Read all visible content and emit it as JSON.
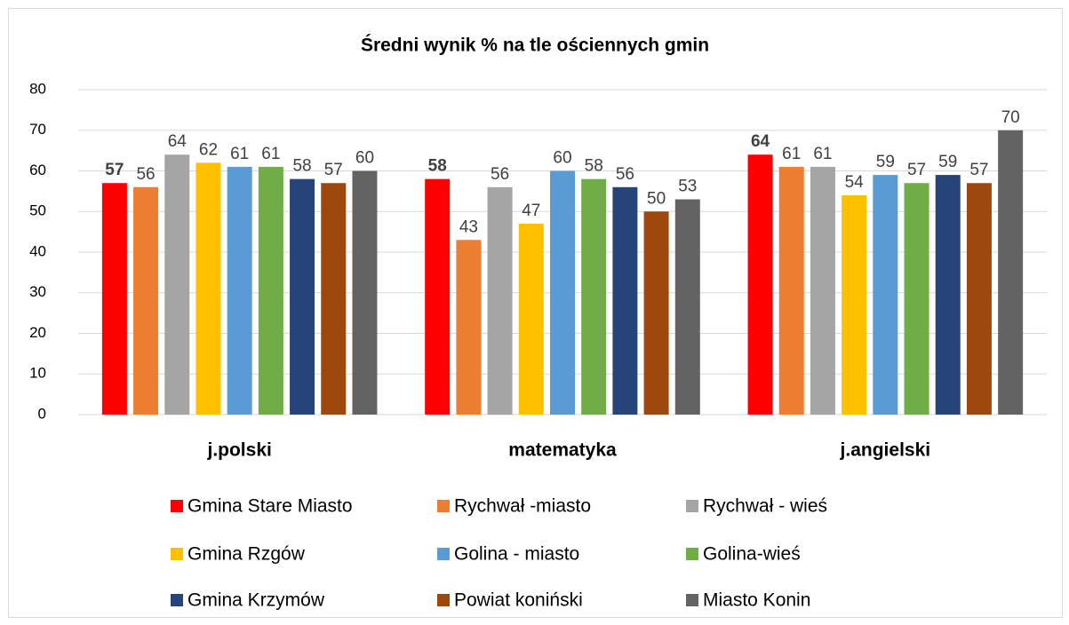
{
  "chart_data": {
    "type": "bar",
    "title": "Średni wynik % na tle ościennych gmin",
    "categories": [
      "j.polski",
      "matematyka",
      "j.angielski"
    ],
    "series": [
      {
        "name": "Gmina Stare Miasto",
        "color": "#ff0000",
        "values": [
          57,
          58,
          64
        ]
      },
      {
        "name": "Rychwał -miasto",
        "color": "#ed7d31",
        "values": [
          56,
          43,
          61
        ]
      },
      {
        "name": "Rychwał - wieś",
        "color": "#a5a5a5",
        "values": [
          64,
          56,
          61
        ]
      },
      {
        "name": "Gmina Rzgów",
        "color": "#ffc000",
        "values": [
          62,
          47,
          54
        ]
      },
      {
        "name": "Golina - miasto",
        "color": "#5b9bd5",
        "values": [
          61,
          60,
          59
        ]
      },
      {
        "name": "Golina-wieś",
        "color": "#70ad47",
        "values": [
          61,
          58,
          57
        ]
      },
      {
        "name": "Gmina Krzymów",
        "color": "#264478",
        "values": [
          58,
          56,
          59
        ]
      },
      {
        "name": "Powiat koniński",
        "color": "#9e480e",
        "values": [
          57,
          50,
          57
        ]
      },
      {
        "name": "Miasto Konin",
        "color": "#636363",
        "values": [
          60,
          53,
          70
        ]
      }
    ],
    "ylim": [
      0,
      80
    ],
    "yticks": [
      0,
      10,
      20,
      30,
      40,
      50,
      60,
      70,
      80
    ],
    "grid": true,
    "legend": "bottom"
  }
}
